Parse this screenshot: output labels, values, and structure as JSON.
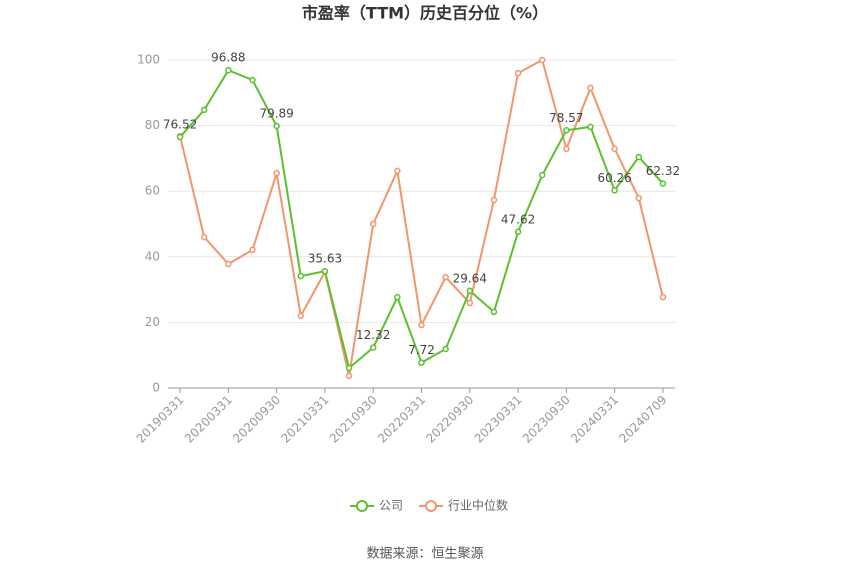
{
  "chart_data": {
    "type": "line",
    "title": "市盈率（TTM）历史百分位（%）",
    "categories": [
      "20190331",
      null,
      "20200331",
      null,
      "20200930",
      null,
      "20210331",
      null,
      "20210930",
      null,
      "20220331",
      null,
      "20220930",
      null,
      "20230331",
      null,
      "20230930",
      null,
      "20240331",
      null,
      "20240709"
    ],
    "series": [
      {
        "name": "公司",
        "color": "#5ac12c",
        "values": [
          76.52,
          84.8,
          96.88,
          93.9,
          79.89,
          34.1,
          35.63,
          6.1,
          12.32,
          27.7,
          7.72,
          11.9,
          29.64,
          23.2,
          47.62,
          64.9,
          78.57,
          79.6,
          60.26,
          70.4,
          62.32
        ],
        "value_labels": [
          "76.52",
          null,
          "96.88",
          null,
          "79.89",
          null,
          "35.63",
          null,
          "12.32",
          null,
          "7.72",
          null,
          "29.64",
          null,
          "47.62",
          null,
          "78.57",
          null,
          "60.26",
          null,
          "62.32"
        ]
      },
      {
        "name": "行业中位数",
        "color": "#f2956b",
        "values": [
          76.8,
          46.0,
          37.8,
          42.1,
          65.5,
          22.0,
          35.4,
          3.7,
          50.0,
          66.2,
          19.2,
          33.8,
          25.9,
          57.3,
          96.0,
          100,
          72.9,
          91.5,
          72.9,
          57.9,
          27.7
        ]
      }
    ],
    "ylim": [
      0,
      100
    ],
    "yticks": [
      0,
      20,
      40,
      60,
      80,
      100
    ],
    "grid": true,
    "source": "数据来源：恒生聚源"
  }
}
